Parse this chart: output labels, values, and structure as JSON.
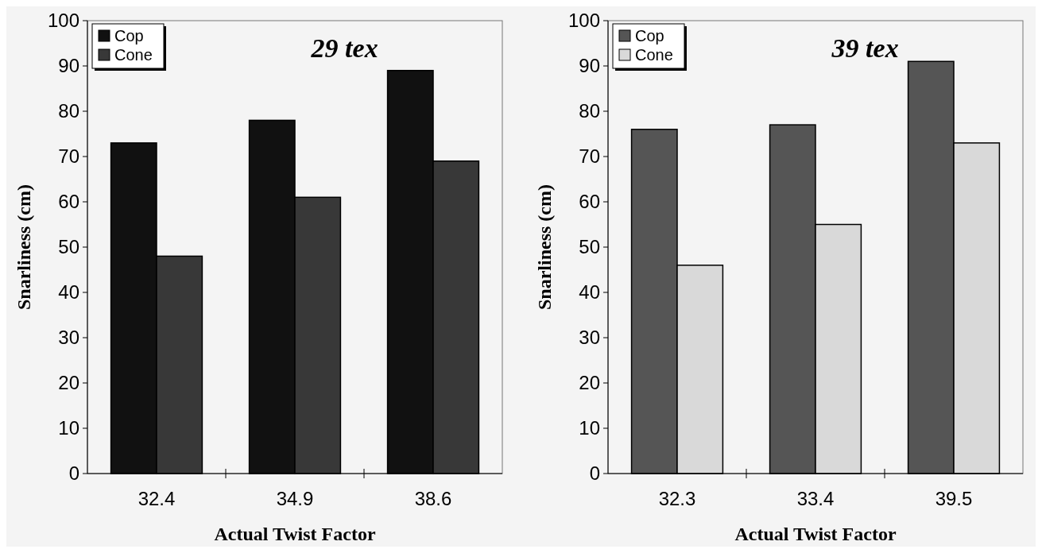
{
  "chart_data": [
    {
      "type": "bar",
      "title": "29 tex",
      "xlabel": "Actual Twist Factor",
      "ylabel": "Snarliness (cm)",
      "categories": [
        "32.4",
        "34.9",
        "38.6"
      ],
      "series": [
        {
          "name": "Cop",
          "color": "#111111",
          "values": [
            73,
            78,
            89
          ]
        },
        {
          "name": "Cone",
          "color": "#383838",
          "values": [
            48,
            61,
            69
          ]
        }
      ],
      "ylim": [
        0,
        100
      ],
      "yticks": [
        0,
        10,
        20,
        30,
        40,
        50,
        60,
        70,
        80,
        90,
        100
      ],
      "legend": "top left",
      "grid": false
    },
    {
      "type": "bar",
      "title": "39 tex",
      "xlabel": "Actual Twist Factor",
      "ylabel": "Snarliness (cm)",
      "categories": [
        "32.3",
        "33.4",
        "39.5"
      ],
      "series": [
        {
          "name": "Cop",
          "color": "#555555",
          "values": [
            76,
            77,
            91
          ]
        },
        {
          "name": "Cone",
          "color": "#d9d9d9",
          "values": [
            46,
            55,
            73
          ]
        }
      ],
      "ylim": [
        0,
        100
      ],
      "yticks": [
        0,
        10,
        20,
        30,
        40,
        50,
        60,
        70,
        80,
        90,
        100
      ],
      "legend": "top left",
      "grid": false
    }
  ]
}
